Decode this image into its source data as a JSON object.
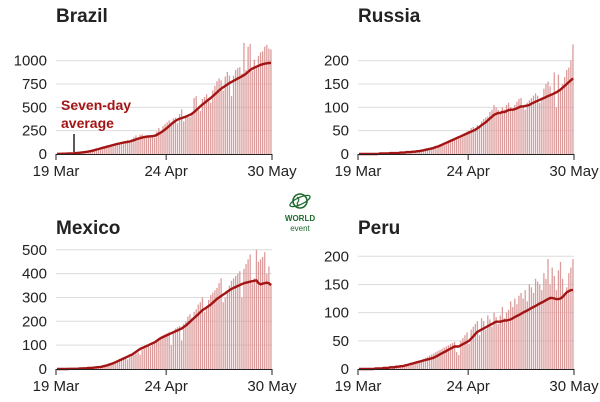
{
  "colors": {
    "bar": "#dc9b9b",
    "line": "#a31515",
    "grid": "#dcdcdc",
    "text": "#222222",
    "logo": "#1e6b2e"
  },
  "logo": {
    "line1": "WORLD",
    "line2": "event"
  },
  "chart_data": [
    {
      "type": "bar",
      "title": "Brazil",
      "x_ticks": [
        "19 Mar",
        "24 Apr",
        "30 May"
      ],
      "y_ticks": [
        0,
        250,
        500,
        750,
        1000
      ],
      "ylim": [
        0,
        1200
      ],
      "grid": true,
      "annotation": {
        "line1": "Seven-day",
        "line2": "average"
      },
      "series": [
        {
          "kind": "bar",
          "values": [
            1,
            2,
            2,
            3,
            3,
            4,
            5,
            6,
            8,
            10,
            12,
            14,
            16,
            20,
            23,
            27,
            30,
            40,
            45,
            55,
            60,
            68,
            70,
            80,
            90,
            85,
            100,
            105,
            115,
            120,
            110,
            130,
            135,
            140,
            150,
            145,
            160,
            180,
            200,
            175,
            205,
            210,
            190,
            180,
            200,
            185,
            195,
            175,
            240,
            280,
            220,
            300,
            320,
            340,
            360,
            340,
            380,
            390,
            330,
            430,
            480,
            350,
            400,
            420,
            395,
            440,
            600,
            620,
            470,
            460,
            590,
            610,
            640,
            580,
            550,
            680,
            730,
            780,
            810,
            790,
            680,
            830,
            880,
            840,
            620,
            840,
            900,
            920,
            930,
            860,
            1190,
            900,
            1150,
            1180,
            890,
            1010,
            940,
            1050,
            1090,
            1100,
            1150,
            1170,
            1130,
            1120
          ],
          "name": ""
        },
        {
          "kind": "line",
          "values": [
            1,
            2,
            2,
            3,
            3,
            4,
            5,
            6,
            8,
            10,
            12,
            14,
            16,
            19,
            22,
            26,
            30,
            35,
            41,
            48,
            54,
            60,
            66,
            72,
            78,
            84,
            90,
            96,
            102,
            108,
            113,
            118,
            122,
            126,
            130,
            134,
            140,
            148,
            156,
            164,
            170,
            176,
            181,
            185,
            188,
            190,
            192,
            195,
            205,
            218,
            230,
            245,
            262,
            280,
            300,
            320,
            338,
            355,
            368,
            378,
            385,
            392,
            400,
            410,
            420,
            432,
            450,
            470,
            490,
            510,
            530,
            548,
            566,
            584,
            600,
            620,
            640,
            660,
            680,
            700,
            715,
            730,
            745,
            760,
            772,
            784,
            796,
            808,
            820,
            832,
            845,
            860,
            880,
            900,
            915,
            925,
            935,
            945,
            955,
            962,
            968,
            972,
            975,
            975
          ]
        }
      ]
    },
    {
      "type": "bar",
      "title": "Russia",
      "x_ticks": [
        "19 Mar",
        "24 Apr",
        "30 May"
      ],
      "y_ticks": [
        0,
        50,
        100,
        150,
        200
      ],
      "ylim": [
        0,
        240
      ],
      "grid": true,
      "series": [
        {
          "kind": "bar",
          "values": [
            0,
            0,
            0,
            0,
            0,
            0,
            0,
            0,
            0,
            0,
            1,
            1,
            1,
            1,
            1,
            2,
            2,
            2,
            2,
            3,
            3,
            3,
            4,
            4,
            4,
            5,
            5,
            6,
            6,
            7,
            8,
            9,
            10,
            11,
            12,
            14,
            15,
            17,
            18,
            20,
            22,
            24,
            26,
            28,
            28,
            30,
            32,
            34,
            36,
            38,
            40,
            45,
            48,
            50,
            56,
            58,
            55,
            62,
            60,
            70,
            75,
            78,
            80,
            90,
            95,
            105,
            100,
            95,
            90,
            100,
            95,
            105,
            110,
            100,
            95,
            105,
            112,
            118,
            120,
            100,
            95,
            110,
            115,
            120,
            125,
            130,
            125,
            110,
            120,
            140,
            150,
            155,
            145,
            130,
            175,
            100,
            170,
            135,
            150,
            165,
            180,
            185,
            200,
            235
          ]
        },
        {
          "kind": "line",
          "values": [
            0,
            0,
            0,
            0,
            0,
            0,
            0,
            0,
            0,
            0,
            1,
            1,
            1,
            1,
            1,
            2,
            2,
            2,
            2,
            2,
            3,
            3,
            3,
            4,
            4,
            4,
            5,
            5,
            6,
            6,
            7,
            8,
            9,
            10,
            11,
            12,
            13,
            15,
            16,
            18,
            20,
            22,
            24,
            26,
            28,
            30,
            32,
            34,
            36,
            38,
            40,
            42,
            44,
            46,
            48,
            50,
            52,
            55,
            58,
            62,
            65,
            68,
            72,
            76,
            80,
            84,
            86,
            88,
            88,
            90,
            90,
            92,
            94,
            95,
            95,
            96,
            98,
            100,
            102,
            102,
            103,
            104,
            105,
            108,
            110,
            112,
            114,
            116,
            118,
            120,
            122,
            124,
            126,
            128,
            130,
            132,
            135,
            138,
            142,
            146,
            150,
            154,
            158,
            162
          ]
        }
      ]
    },
    {
      "type": "bar",
      "title": "Mexico",
      "x_ticks": [
        "19 Mar",
        "24 Apr",
        "30 May"
      ],
      "y_ticks": [
        0,
        100,
        200,
        300,
        400,
        500
      ],
      "ylim": [
        0,
        520
      ],
      "grid": true,
      "series": [
        {
          "kind": "bar",
          "values": [
            0,
            0,
            0,
            0,
            0,
            0,
            1,
            1,
            1,
            1,
            1,
            2,
            2,
            2,
            3,
            3,
            4,
            4,
            5,
            6,
            7,
            8,
            10,
            12,
            15,
            18,
            20,
            25,
            28,
            30,
            35,
            38,
            42,
            45,
            40,
            50,
            55,
            60,
            65,
            70,
            60,
            80,
            85,
            90,
            100,
            95,
            105,
            110,
            120,
            130,
            125,
            140,
            145,
            150,
            155,
            100,
            160,
            170,
            175,
            180,
            120,
            190,
            200,
            220,
            230,
            215,
            240,
            250,
            270,
            280,
            300,
            240,
            260,
            290,
            310,
            320,
            330,
            340,
            360,
            380,
            280,
            300,
            330,
            350,
            370,
            380,
            390,
            400,
            410,
            300,
            420,
            440,
            460,
            480,
            360,
            380,
            500,
            450,
            460,
            470,
            490,
            400,
            430,
            360
          ]
        },
        {
          "kind": "line",
          "values": [
            0,
            0,
            0,
            0,
            0,
            0,
            1,
            1,
            1,
            1,
            1,
            2,
            2,
            3,
            3,
            4,
            4,
            5,
            6,
            7,
            8,
            9,
            11,
            13,
            15,
            18,
            21,
            24,
            28,
            32,
            36,
            40,
            44,
            48,
            52,
            56,
            60,
            66,
            72,
            78,
            84,
            88,
            92,
            96,
            100,
            104,
            108,
            112,
            118,
            124,
            130,
            134,
            138,
            142,
            146,
            150,
            154,
            158,
            162,
            166,
            170,
            176,
            182,
            190,
            198,
            206,
            214,
            222,
            230,
            238,
            246,
            252,
            258,
            264,
            270,
            278,
            286,
            294,
            300,
            306,
            312,
            318,
            324,
            330,
            336,
            340,
            344,
            348,
            352,
            356,
            360,
            362,
            364,
            366,
            368,
            370,
            372,
            360,
            355,
            358,
            360,
            362,
            360,
            352
          ]
        }
      ]
    },
    {
      "type": "bar",
      "title": "Peru",
      "x_ticks": [
        "19 Mar",
        "24 Apr",
        "30 May"
      ],
      "y_ticks": [
        0,
        50,
        100,
        150,
        200
      ],
      "ylim": [
        0,
        220
      ],
      "grid": true,
      "series": [
        {
          "kind": "bar",
          "values": [
            0,
            0,
            0,
            0,
            0,
            0,
            0,
            0,
            1,
            1,
            1,
            1,
            2,
            2,
            2,
            3,
            3,
            3,
            4,
            4,
            5,
            5,
            6,
            7,
            8,
            9,
            10,
            12,
            14,
            15,
            16,
            18,
            20,
            22,
            24,
            26,
            28,
            30,
            32,
            34,
            36,
            38,
            40,
            42,
            44,
            46,
            48,
            30,
            25,
            50,
            55,
            60,
            65,
            45,
            70,
            75,
            80,
            85,
            60,
            90,
            85,
            70,
            95,
            88,
            75,
            100,
            92,
            80,
            95,
            110,
            90,
            100,
            105,
            120,
            110,
            125,
            115,
            130,
            135,
            125,
            140,
            120,
            150,
            145,
            135,
            160,
            155,
            150,
            140,
            170,
            160,
            195,
            150,
            180,
            165,
            140,
            175,
            190,
            160,
            135,
            145,
            170,
            180,
            195
          ]
        },
        {
          "kind": "line",
          "values": [
            0,
            0,
            0,
            0,
            0,
            0,
            0,
            0,
            1,
            1,
            1,
            1,
            2,
            2,
            2,
            3,
            3,
            3,
            4,
            4,
            5,
            5,
            6,
            7,
            8,
            9,
            10,
            11,
            12,
            13,
            14,
            15,
            16,
            17,
            18,
            19,
            20,
            22,
            24,
            26,
            28,
            30,
            32,
            34,
            36,
            38,
            40,
            40,
            40,
            42,
            44,
            46,
            48,
            50,
            54,
            58,
            62,
            66,
            68,
            70,
            72,
            74,
            76,
            78,
            80,
            82,
            84,
            84,
            84,
            85,
            86,
            86,
            87,
            88,
            90,
            92,
            94,
            96,
            98,
            100,
            102,
            104,
            106,
            108,
            110,
            112,
            114,
            116,
            118,
            120,
            122,
            124,
            126,
            126,
            125,
            124,
            124,
            125,
            128,
            132,
            136,
            138,
            140,
            140
          ]
        }
      ]
    }
  ]
}
